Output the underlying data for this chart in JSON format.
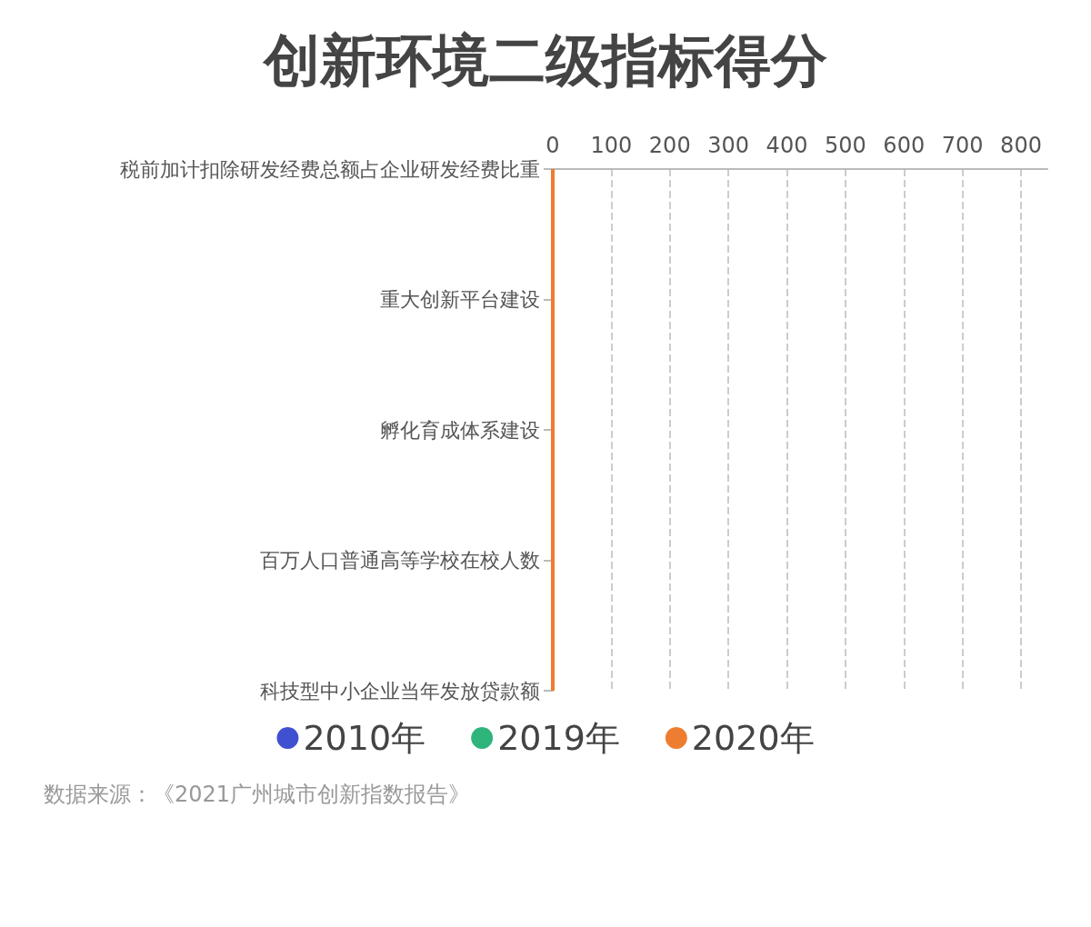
{
  "chart_data": {
    "type": "line",
    "orientation": "horizontal",
    "title": "创新环境二级指标得分",
    "categories": [
      "税前加计扣除研发经费总额占企业研发经费比重",
      "重大创新平台建设",
      "孵化育成体系建设",
      "百万人口普通高等学校在校人数",
      "科技型中小企业当年发放贷款额"
    ],
    "series": [
      {
        "name": "2010年",
        "color": "#3f51d0",
        "values": [
          null,
          null,
          null,
          null,
          null
        ]
      },
      {
        "name": "2019年",
        "color": "#2fb57c",
        "values": [
          null,
          null,
          null,
          null,
          null
        ]
      },
      {
        "name": "2020年",
        "color": "#ef7d31",
        "values": [
          0,
          0,
          0,
          0,
          0
        ]
      }
    ],
    "xlim": [
      0,
      845
    ],
    "xticks": [
      0,
      100,
      200,
      300,
      400,
      500,
      600,
      700,
      800
    ],
    "grid": "x",
    "legend": "bottom",
    "marker": "none",
    "line_style": "solid",
    "annotations": [
      "数据来源：《2021广州城市创新指数报告》"
    ]
  }
}
